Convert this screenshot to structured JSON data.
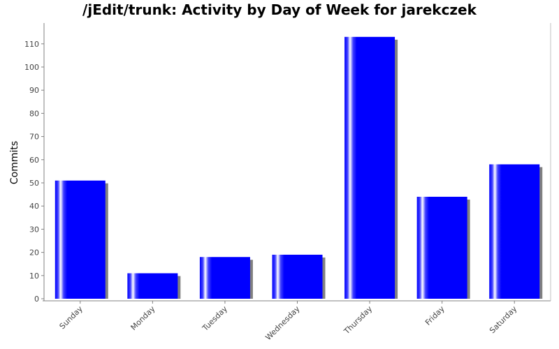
{
  "chart_data": {
    "type": "bar",
    "title": "/jEdit/trunk: Activity by Day of Week for jarekczek",
    "xlabel": "",
    "ylabel": "Commits",
    "categories": [
      "Sunday",
      "Monday",
      "Tuesday",
      "Wednesday",
      "Thursday",
      "Friday",
      "Saturday"
    ],
    "values": [
      51,
      11,
      18,
      19,
      113,
      44,
      58
    ],
    "ylim": [
      0,
      118
    ],
    "yticks": [
      0,
      10,
      20,
      30,
      40,
      50,
      60,
      70,
      80,
      90,
      100,
      110
    ],
    "grid": false,
    "legend": "none",
    "colors": {
      "bar": "#0000ff",
      "shadow": "#808080",
      "axis": "#808080",
      "highlight": "#ffffff"
    }
  }
}
